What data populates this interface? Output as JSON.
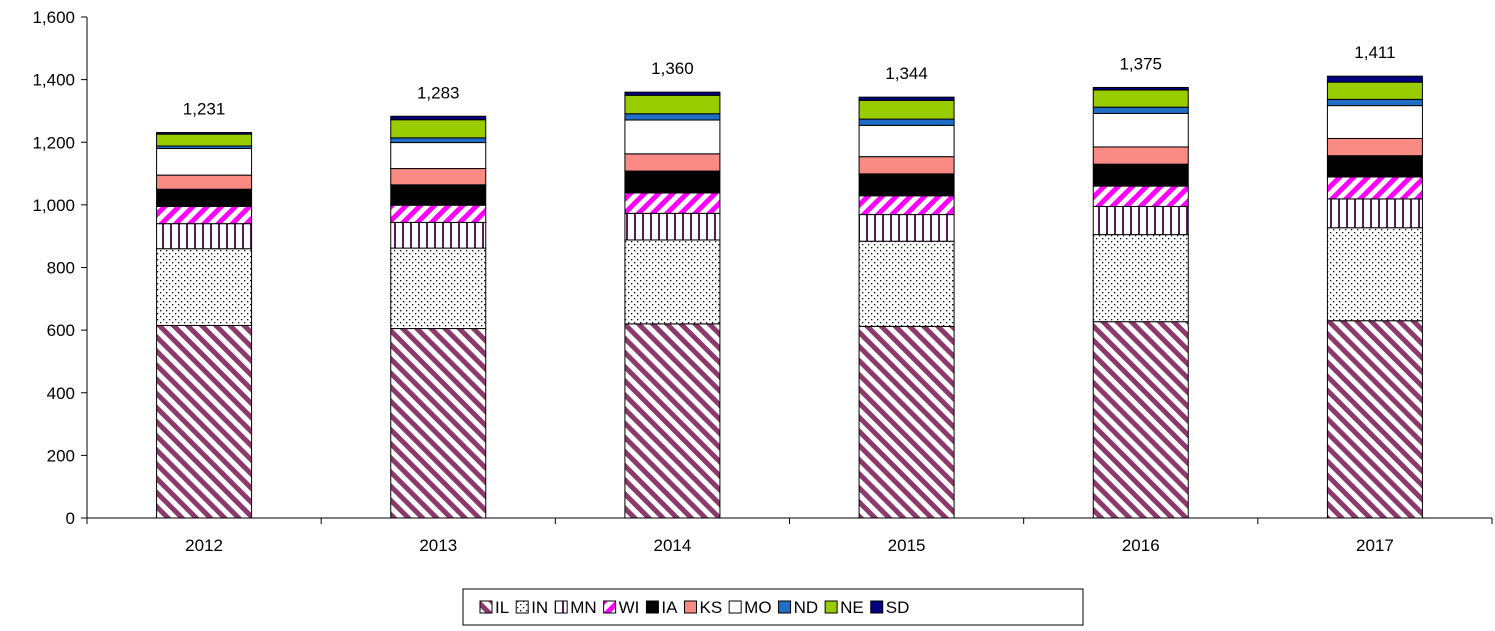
{
  "chart_data": {
    "type": "bar",
    "stacked": true,
    "title": "",
    "xlabel": "",
    "ylabel": "",
    "ylim": [
      0,
      1600
    ],
    "yticks": [
      0,
      200,
      400,
      600,
      800,
      1000,
      1200,
      1400,
      1600
    ],
    "ytick_labels": [
      "0",
      "200",
      "400",
      "600",
      "800",
      "1,000",
      "1,200",
      "1,400",
      "1,600"
    ],
    "categories": [
      "2012",
      "2013",
      "2014",
      "2015",
      "2016",
      "2017"
    ],
    "totals": [
      1231,
      1283,
      1360,
      1344,
      1375,
      1411
    ],
    "total_labels": [
      "1,231",
      "1,283",
      "1,360",
      "1,344",
      "1,375",
      "1,411"
    ],
    "legend_position": "bottom",
    "grid": false,
    "series": [
      {
        "name": "IL",
        "pattern": "diagonal-stripes",
        "color": "#8B3A6B",
        "values": [
          615,
          605,
          620,
          612,
          627,
          630
        ]
      },
      {
        "name": "IN",
        "pattern": "dots",
        "color": "#000000",
        "values": [
          245,
          257,
          268,
          272,
          278,
          297
        ]
      },
      {
        "name": "MN",
        "pattern": "vertical-lines",
        "color": "#5A1A5A",
        "values": [
          80,
          82,
          85,
          85,
          90,
          92
        ]
      },
      {
        "name": "WI",
        "pattern": "diagonal-stripes-reverse",
        "color": "#FF00FF",
        "values": [
          55,
          55,
          65,
          60,
          65,
          70
        ]
      },
      {
        "name": "IA",
        "pattern": "solid",
        "color": "#000000",
        "values": [
          55,
          65,
          70,
          70,
          70,
          68
        ]
      },
      {
        "name": "KS",
        "pattern": "solid",
        "color": "#F98B84",
        "values": [
          45,
          52,
          55,
          55,
          55,
          55
        ]
      },
      {
        "name": "MO",
        "pattern": "solid",
        "color": "#FFFFFF",
        "values": [
          85,
          83,
          108,
          100,
          107,
          105
        ]
      },
      {
        "name": "ND",
        "pattern": "solid",
        "color": "#1F6FC6",
        "values": [
          8,
          15,
          20,
          20,
          20,
          20
        ]
      },
      {
        "name": "NE",
        "pattern": "solid",
        "color": "#99CC00",
        "values": [
          38,
          58,
          59,
          60,
          55,
          55
        ]
      },
      {
        "name": "SD",
        "pattern": "solid",
        "color": "#000080",
        "values": [
          5,
          11,
          10,
          10,
          8,
          19
        ]
      }
    ]
  }
}
